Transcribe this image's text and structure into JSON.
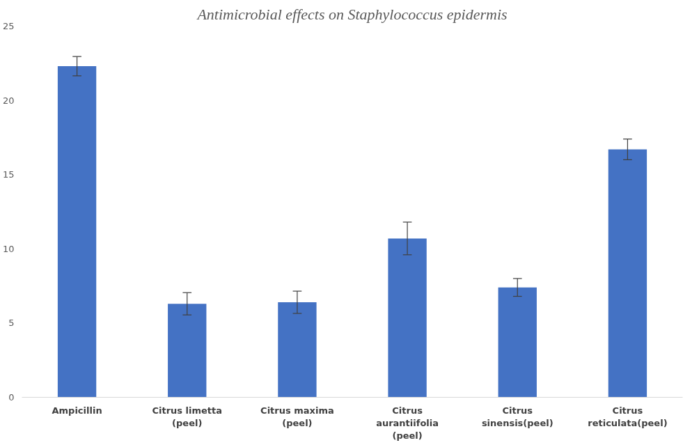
{
  "chart_data": {
    "type": "bar",
    "title": "Antimicrobial effects on Staphylococcus epidermis",
    "categories": [
      "Ampicillin",
      "Citrus limetta (peel)",
      "Citrus maxima (peel)",
      "Citrus aurantiifolia (peel)",
      "Citrus sinensis(peel)",
      "Citrus reticulata(peel)"
    ],
    "values": [
      22.3,
      6.3,
      6.4,
      10.7,
      7.4,
      16.7
    ],
    "errors": [
      0.65,
      0.75,
      0.75,
      1.1,
      0.6,
      0.7
    ],
    "color": "#4472c4",
    "ylim": [
      0,
      25
    ],
    "yticks": [
      0,
      5,
      10,
      15,
      20,
      25
    ],
    "grid": false
  }
}
